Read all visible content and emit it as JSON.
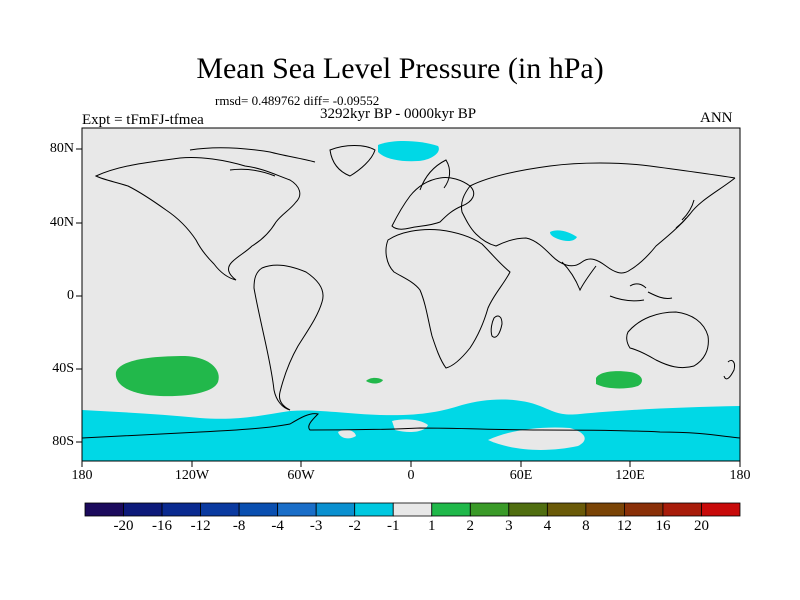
{
  "title": "Mean Sea Level Pressure (in hPa)",
  "stats": "rmsd= 0.489762 diff= -0.09552",
  "period": "3292kyr BP - 0000kyr BP",
  "experiment": "Expt = tFmFJ-tfmea",
  "season": "ANN",
  "y_ticks": [
    "80N",
    "40N",
    "0",
    "40S",
    "80S"
  ],
  "x_ticks": [
    "180",
    "120W",
    "60W",
    "0",
    "60E",
    "120E",
    "180"
  ],
  "colorbar": {
    "labels": [
      "-20",
      "-16",
      "-12",
      "-8",
      "-4",
      "-3",
      "-2",
      "-1",
      "1",
      "2",
      "3",
      "4",
      "8",
      "12",
      "16",
      "20"
    ],
    "colors": [
      "#1b0a5c",
      "#0d1a7a",
      "#0a2a90",
      "#0a3aa0",
      "#0a4fb0",
      "#1a6ec8",
      "#0a90d0",
      "#00c8e0",
      "#e8e8e8",
      "#20b84a",
      "#3a9a28",
      "#506e10",
      "#6a5a08",
      "#7a4406",
      "#8a3008",
      "#a81c0a",
      "#c80a0a"
    ]
  },
  "colors": {
    "background": "#e8e8e8",
    "neg_minus1": "#00d8e6",
    "pos_2": "#22b84b",
    "coast": "#000000"
  }
}
